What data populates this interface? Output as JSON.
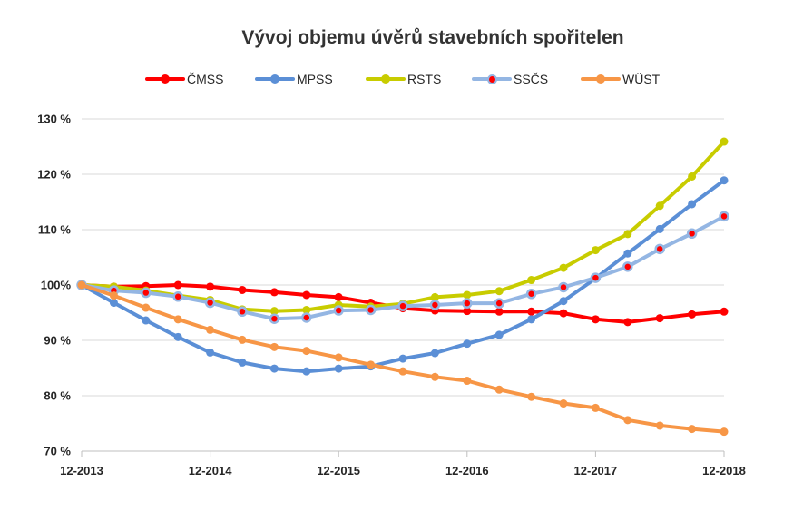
{
  "chart_data": {
    "type": "line",
    "title": "Vývoj objemu úvěrů stavebních spořitelen",
    "xlabel": "",
    "ylabel": "",
    "y_unit": "%",
    "ylim": [
      70,
      130
    ],
    "y_ticks": [
      "70 %",
      "80 %",
      "90 %",
      "100%",
      "110 %",
      "120 %",
      "130 %"
    ],
    "y_tick_values": [
      70,
      80,
      90,
      100,
      110,
      120,
      130
    ],
    "x_tick_labels": [
      "12-2013",
      "12-2014",
      "12-2015",
      "12-2016",
      "12-2017",
      "12-2018"
    ],
    "x_periods": 21,
    "grid": true,
    "legend": "top",
    "series": [
      {
        "name": "ČMSS",
        "color": "#ff0000",
        "marker": "circle",
        "values": [
          100,
          99.7,
          99.8,
          100,
          99.7,
          99.1,
          98.7,
          98.2,
          97.8,
          96.8,
          95.8,
          95.4,
          95.3,
          95.2,
          95.2,
          94.9,
          93.8,
          93.3,
          94.0,
          94.7,
          95.2
        ]
      },
      {
        "name": "MPSS",
        "color": "#5b8fd6",
        "marker": "circle",
        "values": [
          100,
          96.8,
          93.6,
          90.6,
          87.8,
          86.0,
          84.9,
          84.4,
          84.9,
          85.3,
          86.7,
          87.7,
          89.4,
          91.0,
          93.8,
          97.1,
          101.2,
          105.7,
          110.1,
          114.6,
          118.9
        ]
      },
      {
        "name": "RSTS",
        "color": "#c8cc00",
        "marker": "circle",
        "values": [
          100,
          99.7,
          99.0,
          98.1,
          97.3,
          95.6,
          95.3,
          95.5,
          96.4,
          96.1,
          96.6,
          97.8,
          98.2,
          98.9,
          100.9,
          103.1,
          106.3,
          109.2,
          114.3,
          119.6,
          125.9
        ]
      },
      {
        "name": "SSČS",
        "color": "#94b6e3",
        "marker": "circle-red",
        "values": [
          100,
          99.0,
          98.6,
          97.9,
          96.8,
          95.2,
          93.9,
          94.1,
          95.4,
          95.5,
          96.2,
          96.4,
          96.7,
          96.7,
          98.4,
          99.6,
          101.3,
          103.3,
          106.5,
          109.3,
          112.4
        ]
      },
      {
        "name": "WÜST",
        "color": "#f79646",
        "marker": "circle",
        "values": [
          100,
          98.1,
          95.9,
          93.8,
          91.9,
          90.1,
          88.8,
          88.1,
          86.9,
          85.6,
          84.4,
          83.4,
          82.7,
          81.1,
          79.8,
          78.6,
          77.8,
          75.6,
          74.6,
          74.0,
          73.5
        ]
      }
    ]
  }
}
